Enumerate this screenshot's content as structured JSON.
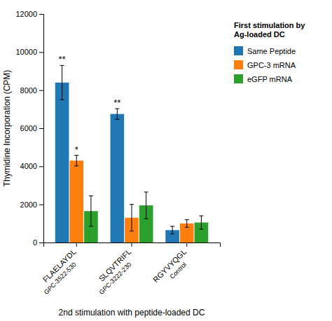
{
  "chart_data": {
    "type": "bar",
    "categories": [
      "FLAELAYDL",
      "SLQVTRIFL",
      "RGYVYQGL"
    ],
    "category_sublabels": [
      "GPC-3522-530",
      "GPC-3222-230",
      "Control"
    ],
    "series": [
      {
        "name": "Same Peptide",
        "values": [
          8400,
          6750,
          650
        ],
        "errors": [
          900,
          280,
          200
        ],
        "annotations": [
          "**",
          "**",
          null
        ]
      },
      {
        "name": "GPC-3 mRNA",
        "values": [
          4300,
          1300,
          1000
        ],
        "errors": [
          280,
          700,
          200
        ],
        "annotations": [
          "*",
          null,
          null
        ]
      },
      {
        "name": "eGFP mRNA",
        "values": [
          1650,
          1950,
          1050
        ],
        "errors": [
          800,
          700,
          350
        ]
      }
    ],
    "ylabel": "Thymidine Incorporation (CPM)",
    "xlabel": "2nd stimulation with peptide-loaded DC",
    "ylim": [
      0,
      12000
    ],
    "yticks": [
      0,
      2000,
      4000,
      6000,
      8000,
      10000,
      12000
    ],
    "legend_title": "First stimulation by\nAg-loaded DC",
    "legend": "right",
    "grid": false
  }
}
